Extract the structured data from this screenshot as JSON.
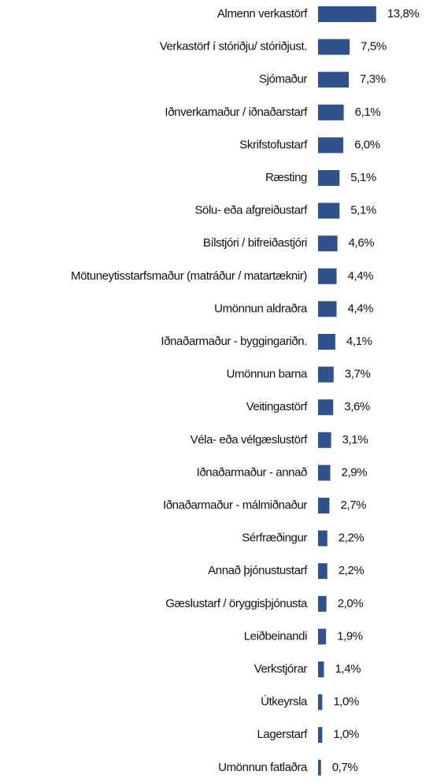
{
  "chart_data": {
    "type": "bar",
    "orientation": "horizontal",
    "color": "#30528c",
    "categories": [
      "Almenn verkastörf",
      "Verkastörf í stóriðju/ stóriðjust.",
      "Sjómaður",
      "Iðnverkamaður / iðnaðarstarf",
      "Skrifstofustarf",
      "Ræsting",
      "Sölu- eða afgreiðustarf",
      "Bílstjóri / bifreiðastjóri",
      "Mötuneytisstarfsmaður (matráður / matartæknir)",
      "Umönnun aldraðra",
      "Iðnaðarmaður - byggingariðn.",
      "Umönnun barna",
      "Veitingastörf",
      "Véla- eða vélgæslustörf",
      "Iðnaðarmaður - annað",
      "Iðnaðarmaður - málmiðnaður",
      "Sérfræðingur",
      "Annað þjónustustarf",
      "Gæslustarf / öryggisþjónusta",
      "Leiðbeinandi",
      "Verkstjórar",
      "Útkeyrsla",
      "Lagerstarf",
      "Umönnun fatlaðra"
    ],
    "values": [
      13.8,
      7.5,
      7.3,
      6.1,
      6.0,
      5.1,
      5.1,
      4.6,
      4.4,
      4.4,
      4.1,
      3.7,
      3.6,
      3.1,
      2.9,
      2.7,
      2.2,
      2.2,
      2.0,
      1.9,
      1.4,
      1.0,
      1.0,
      0.7
    ],
    "value_labels": [
      "13,8%",
      "7,5%",
      "7,3%",
      "6,1%",
      "6,0%",
      "5,1%",
      "5,1%",
      "4,6%",
      "4,4%",
      "4,4%",
      "4,1%",
      "3,7%",
      "3,6%",
      "3,1%",
      "2,9%",
      "2,7%",
      "2,2%",
      "2,2%",
      "2,0%",
      "1,9%",
      "1,4%",
      "1,0%",
      "1,0%",
      "0,7%"
    ]
  }
}
